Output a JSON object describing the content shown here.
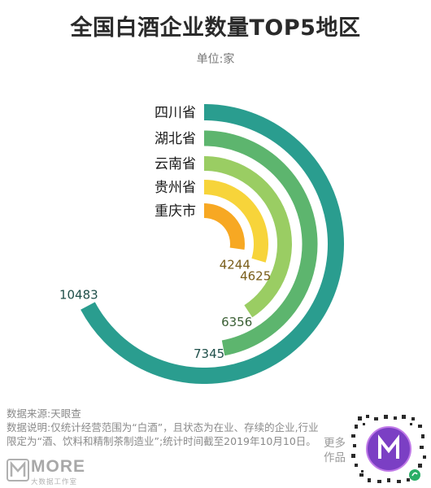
{
  "chart_data": {
    "type": "bar",
    "title": "全国白酒企业数量TOP5地区",
    "subtitle": "单位:家",
    "categories": [
      "四川省",
      "湖北省",
      "云南省",
      "贵州省",
      "重庆市"
    ],
    "values": [
      10483,
      7345,
      6356,
      4625,
      4244
    ],
    "colors": [
      "#2a9d8f",
      "#5db56e",
      "#9acd63",
      "#f7d43a",
      "#f7a823"
    ],
    "value_label_colors": [
      "#1f4f4a",
      "#1f4f4a",
      "#3a5f34",
      "#7a5e1a",
      "#7a5e1a"
    ]
  },
  "footer": {
    "source": "数据来源:天眼查",
    "note_line1": "数据说明:仅统计经营范围为“白酒”，且状态为在业、存续的企业,行业",
    "note_line2": "限定为“酒、饮料和精制茶制造业”;统计时间截至2019年10月10日。",
    "more_line1": "更多",
    "more_line2": "作品"
  },
  "logo": {
    "word": "MORE",
    "sub": "大数据工作室"
  }
}
